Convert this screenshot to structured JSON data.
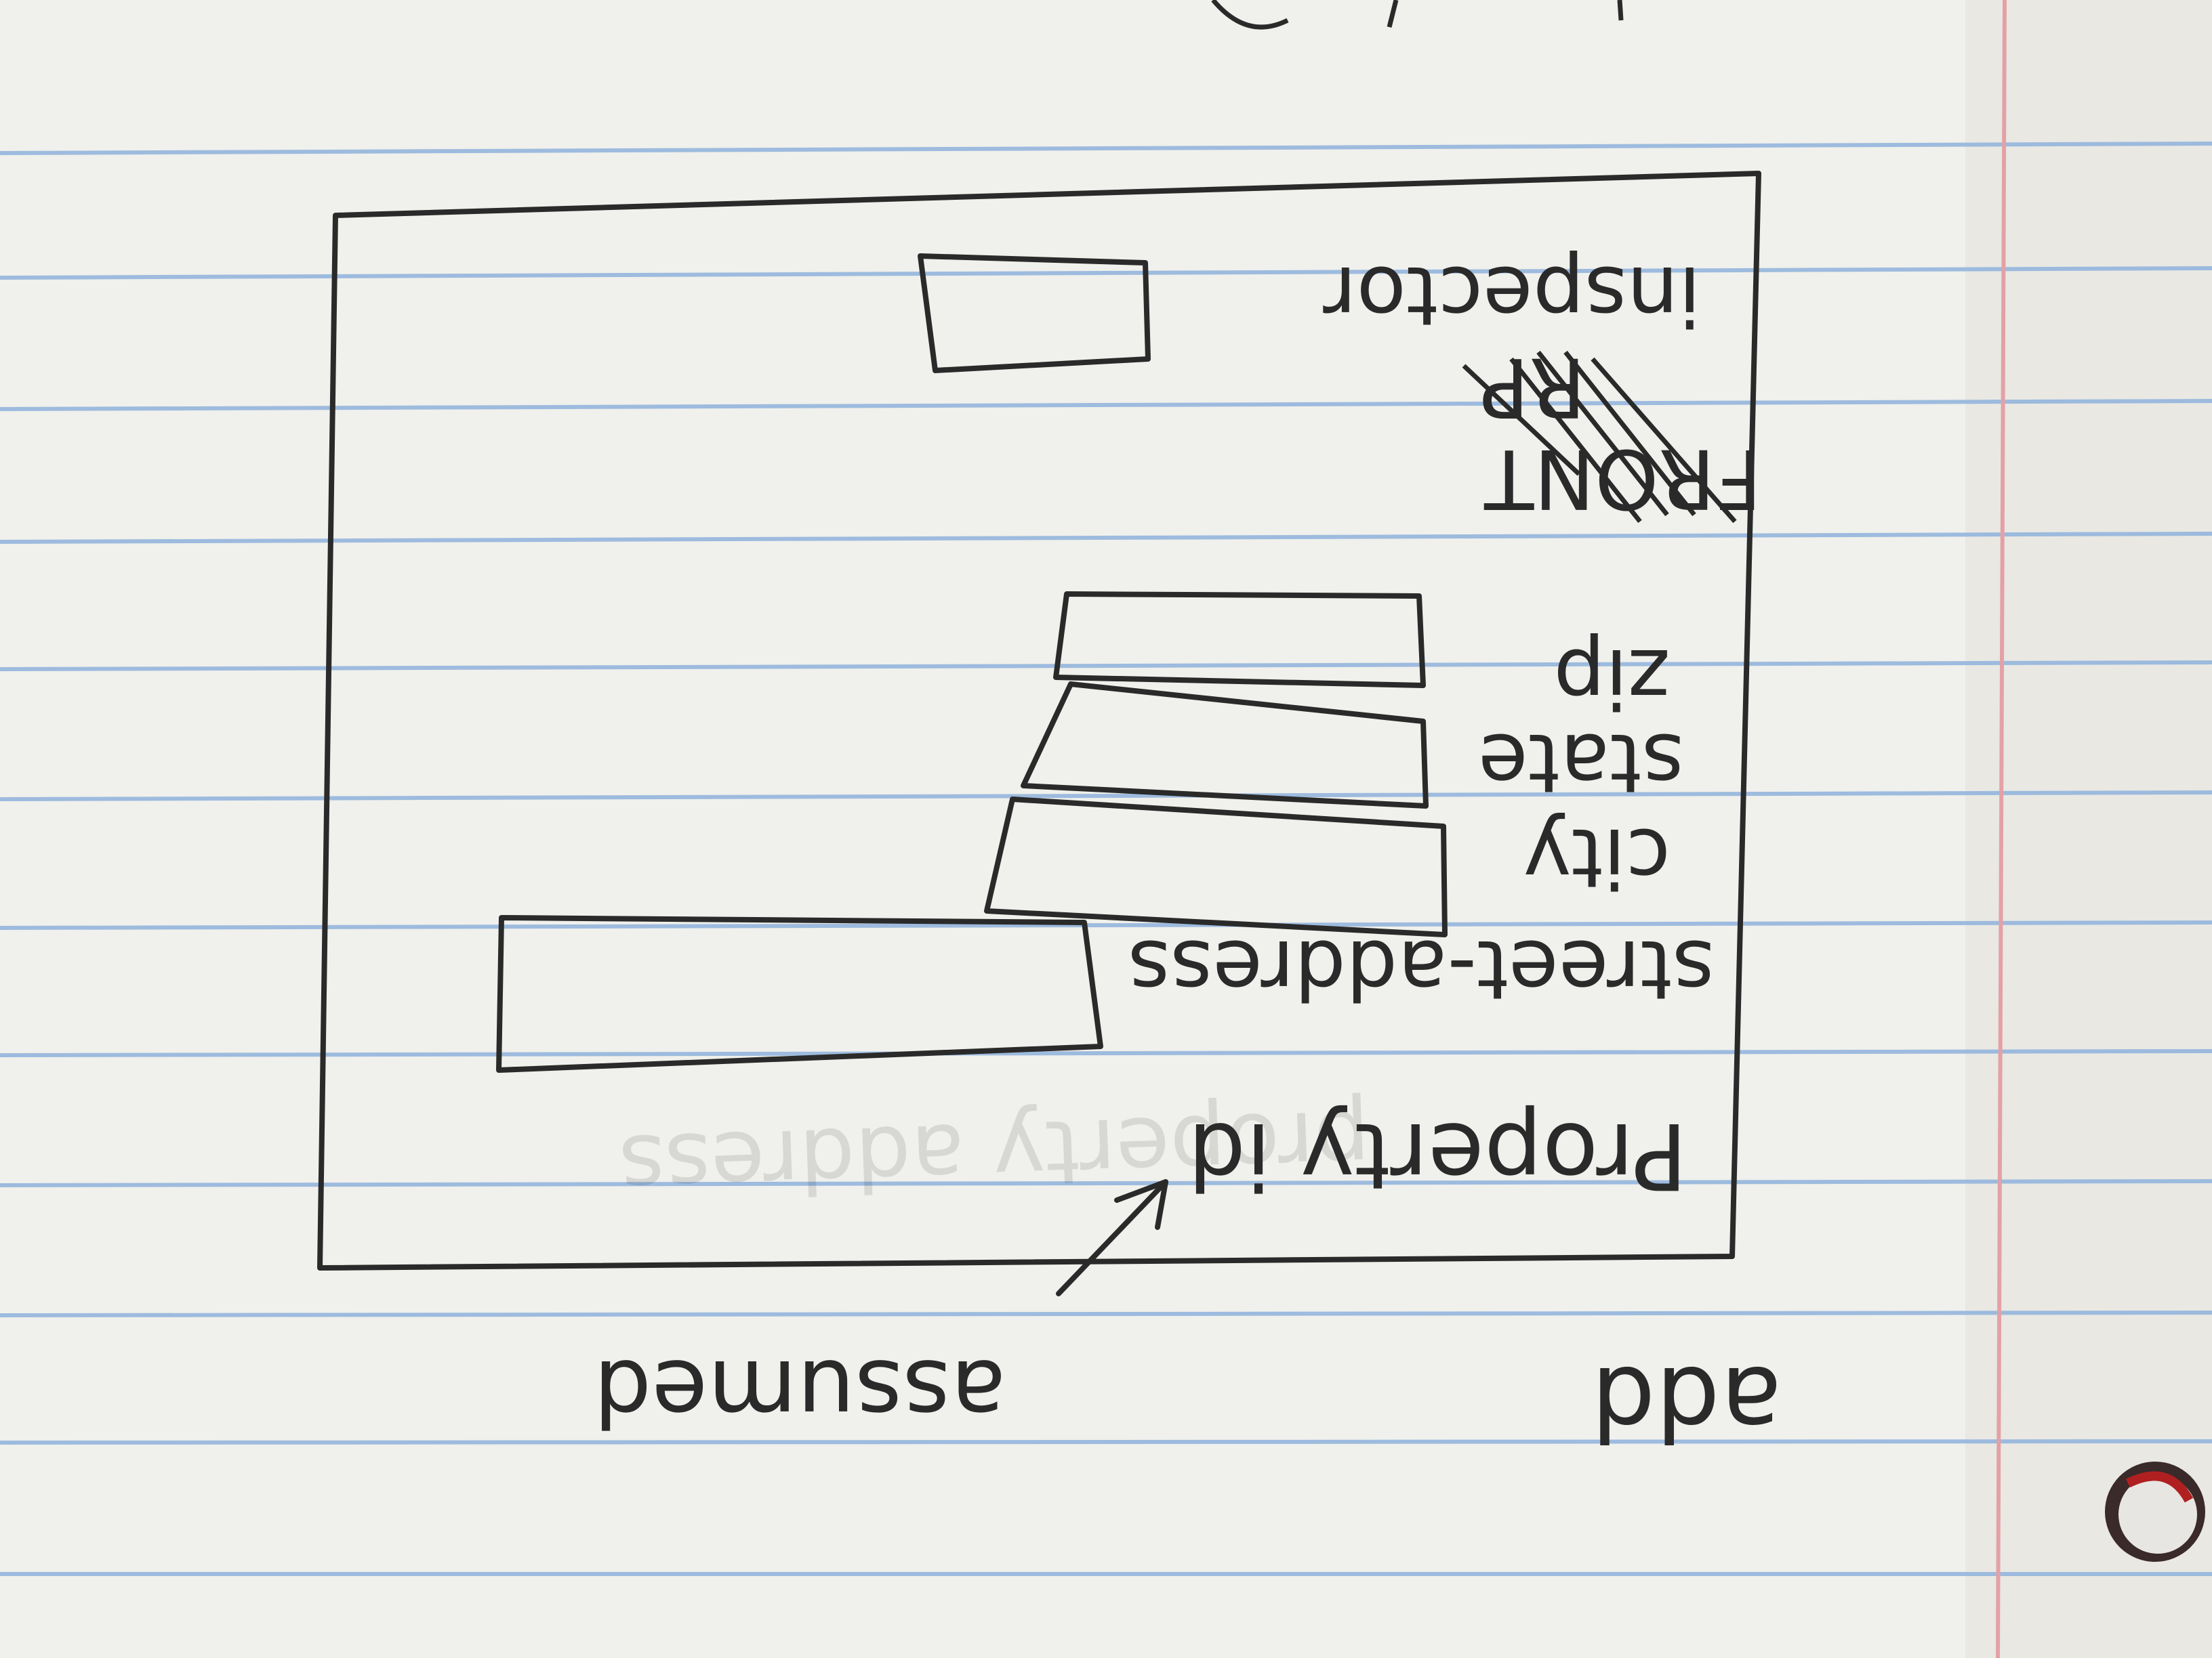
{
  "paper": {
    "color": "#f1f1ed",
    "rule_line_color": "#8fb2dc",
    "margin_line_color": "#e3a1a6",
    "ink_color": "#2a2a2a"
  },
  "page_note": {
    "top_word": "add",
    "side_note": "assumed",
    "faint_bleed_through": "property address"
  },
  "form_sketch": {
    "fields": [
      {
        "label": "Property id",
        "has_box": false
      },
      {
        "label": "street-address",
        "has_box": true
      },
      {
        "label": "city",
        "has_box": true
      },
      {
        "label": "state",
        "has_box": true
      },
      {
        "label": "zip",
        "has_box": true
      },
      {
        "label": "inspector",
        "has_box": true
      }
    ],
    "crossed_out_text": "FRONT"
  }
}
